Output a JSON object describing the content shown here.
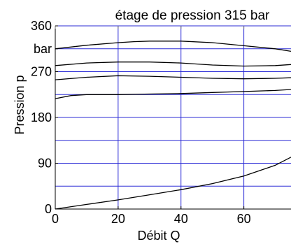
{
  "chart_data": {
    "type": "line",
    "title": "étage de pression 315 bar",
    "xlabel": "Débit Q",
    "ylabel": "Pression p",
    "xlim": [
      0,
      75
    ],
    "ylim": [
      0,
      360
    ],
    "x_ticks": [
      {
        "value": 0,
        "label": "0"
      },
      {
        "value": 20,
        "label": "20"
      },
      {
        "value": 40,
        "label": "40"
      },
      {
        "value": 60,
        "label": "60"
      }
    ],
    "y_ticks": [
      {
        "value": 0,
        "label": "0"
      },
      {
        "value": 90,
        "label": "90"
      },
      {
        "value": 180,
        "label": "180"
      },
      {
        "value": 270,
        "label": "270"
      },
      {
        "value": 360,
        "label": "360"
      }
    ],
    "y_unit_label": {
      "value": 315,
      "label": "bar"
    },
    "grid_x": [
      0,
      20,
      40,
      60
    ],
    "grid_y": [
      45,
      90,
      135,
      180,
      225,
      270,
      315,
      360
    ],
    "grid_color": "#2b2bd6",
    "line_color": "#000000",
    "series": [
      {
        "x": [
          0,
          10,
          20,
          25,
          30,
          40,
          50,
          60,
          70,
          75
        ],
        "values": [
          315,
          322,
          327,
          329,
          330,
          330,
          327,
          321,
          315,
          310
        ]
      },
      {
        "x": [
          0,
          10,
          20,
          30,
          40,
          50,
          60,
          70,
          75
        ],
        "values": [
          282,
          287,
          289,
          289,
          287,
          283,
          281,
          282,
          284
        ]
      },
      {
        "x": [
          0,
          10,
          20,
          30,
          40,
          50,
          60,
          70,
          75
        ],
        "values": [
          254,
          259,
          262,
          261,
          259,
          257,
          256,
          257,
          258
        ]
      },
      {
        "x": [
          0,
          5,
          10,
          20,
          30,
          40,
          50,
          60,
          70,
          75
        ],
        "values": [
          217,
          223,
          225,
          225,
          226,
          227,
          229,
          231,
          233,
          235
        ]
      },
      {
        "x": [
          0,
          10,
          20,
          30,
          40,
          50,
          60,
          70,
          75
        ],
        "values": [
          0,
          9,
          18,
          28,
          38,
          50,
          65,
          86,
          102
        ]
      }
    ]
  }
}
